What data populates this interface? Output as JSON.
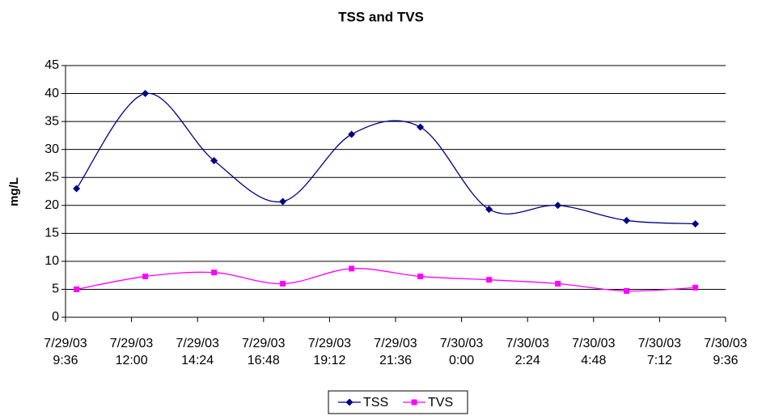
{
  "chart_data": {
    "type": "line",
    "title": "TSS and TVS",
    "y_label": "mg/L",
    "x": [
      "7/29/03 10:00",
      "7/29/03 12:30",
      "7/29/03 15:00",
      "7/29/03 17:30",
      "7/29/03 20:00",
      "7/29/03 22:30",
      "7/30/03 1:00",
      "7/30/03 3:30",
      "7/30/03 6:00",
      "7/30/03 8:30"
    ],
    "series": [
      {
        "name": "TSS",
        "color": "#000080",
        "marker": "diamond",
        "values": [
          23,
          40,
          28,
          20.7,
          32.7,
          34,
          19.3,
          20,
          17.3,
          16.7
        ]
      },
      {
        "name": "TVS",
        "color": "#ff00ff",
        "marker": "square",
        "values": [
          5,
          7.3,
          8,
          6,
          8.7,
          7.3,
          6.7,
          6,
          4.7,
          5.3
        ]
      }
    ],
    "xlim": [
      "7/29/03 9:36",
      "7/30/03 9:36"
    ],
    "xticks": [
      "7/29/03 9:36",
      "7/29/03 12:00",
      "7/29/03 14:24",
      "7/29/03 16:48",
      "7/29/03 19:12",
      "7/29/03 21:36",
      "7/30/03 0:00",
      "7/30/03 2:24",
      "7/30/03 4:48",
      "7/30/03 7:12",
      "7/30/03 9:36"
    ],
    "ylim": [
      0,
      45
    ],
    "yticks": [
      0,
      5,
      10,
      15,
      20,
      25,
      30,
      35,
      40,
      45
    ],
    "grid": true,
    "smooth": true,
    "legend": "bottom"
  }
}
